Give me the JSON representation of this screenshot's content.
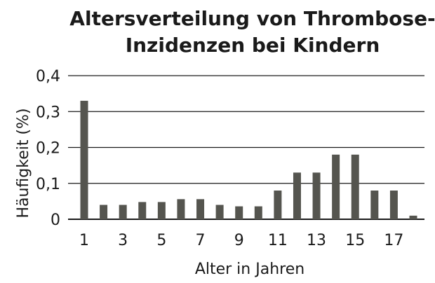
{
  "chart_data": {
    "type": "bar",
    "title_lines": [
      "Altersverteilung von Thrombose-",
      "Inzidenzen bei Kindern"
    ],
    "xlabel": "Alter in Jahren",
    "ylabel": "Häufigkeit (%)",
    "ylim": [
      0,
      0.4
    ],
    "y_ticks": [
      "0",
      "0,1",
      "0,2",
      "0,3",
      "0,4"
    ],
    "x_tick_labels": [
      "1",
      "3",
      "5",
      "7",
      "9",
      "11",
      "13",
      "15",
      "17"
    ],
    "categories": [
      1,
      2,
      3,
      4,
      5,
      6,
      7,
      8,
      9,
      10,
      11,
      12,
      13,
      14,
      15,
      16,
      17,
      18
    ],
    "values": [
      0.33,
      0.04,
      0.04,
      0.048,
      0.048,
      0.056,
      0.056,
      0.04,
      0.036,
      0.036,
      0.08,
      0.13,
      0.13,
      0.18,
      0.18,
      0.08,
      0.08,
      0.01
    ],
    "grid": true,
    "legend": "none",
    "colors": {
      "bar": "#55554f",
      "grid": "#1a1a1a",
      "text": "#1a1a1a"
    }
  }
}
